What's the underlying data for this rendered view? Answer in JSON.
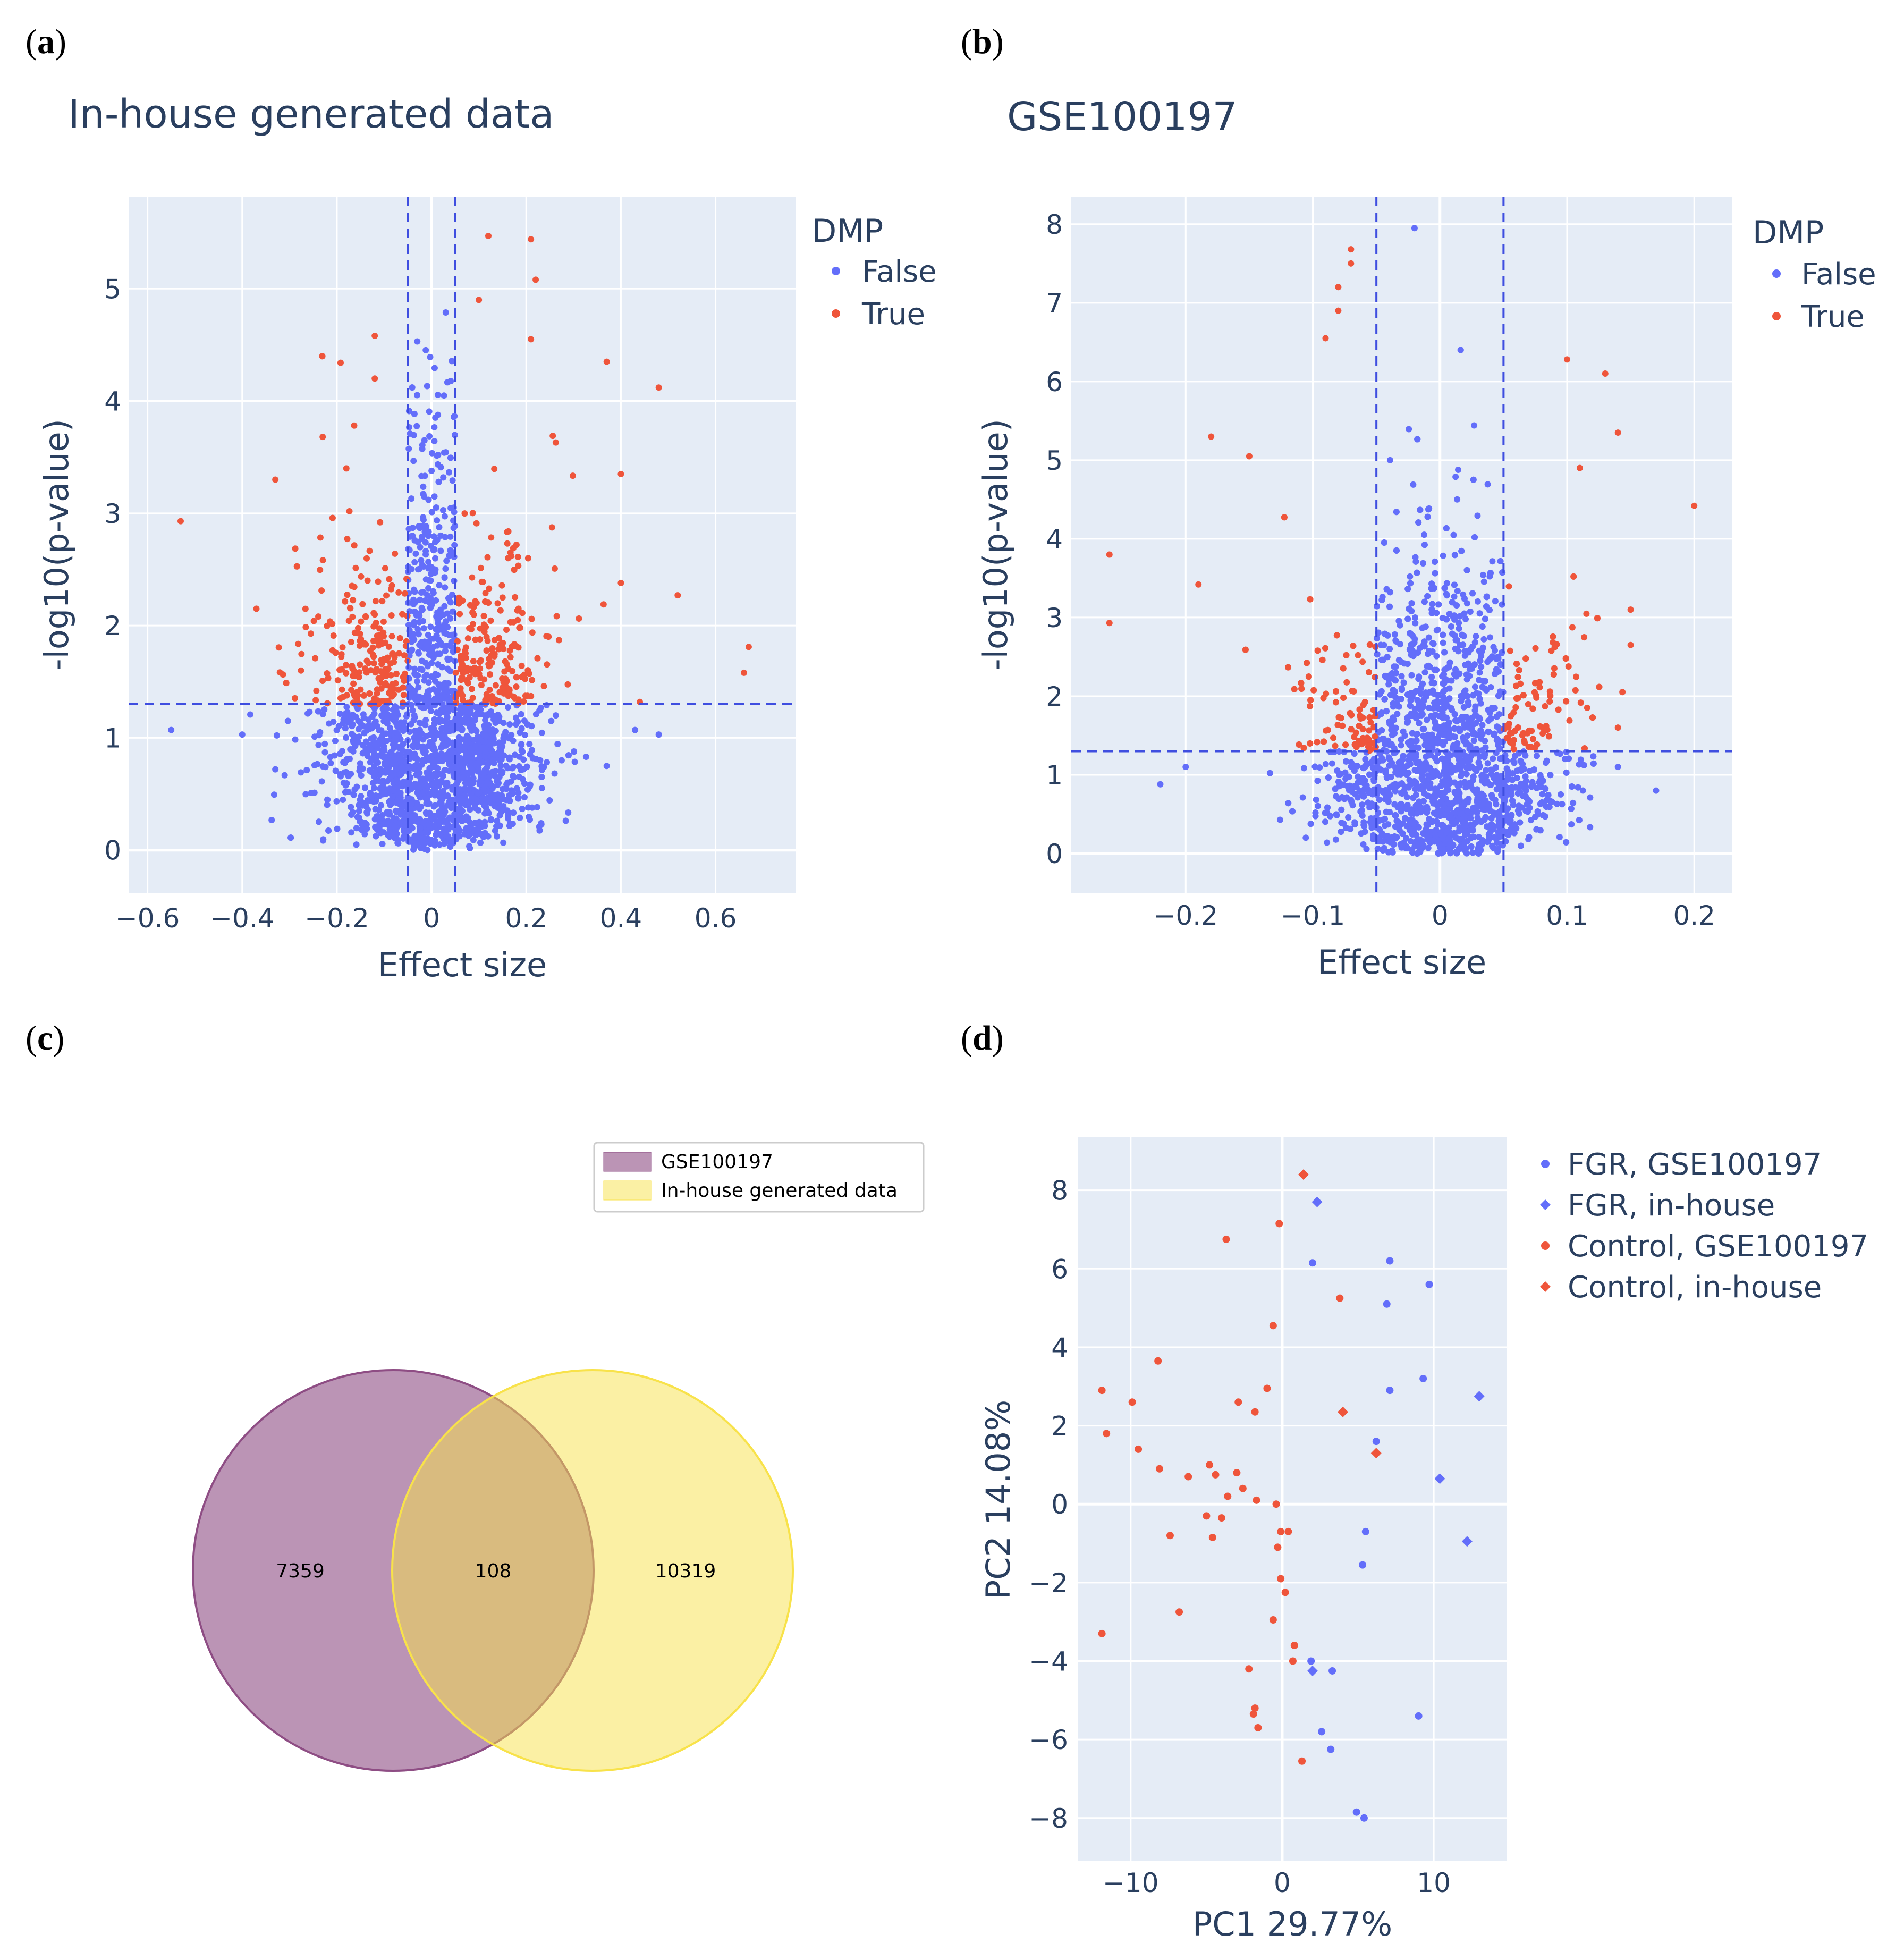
{
  "panels": {
    "a": {
      "label": "a"
    },
    "b": {
      "label": "b"
    },
    "c": {
      "label": "c"
    },
    "d": {
      "label": "d"
    }
  },
  "colors": {
    "false": "#636efa",
    "true": "#ef553b",
    "bg": "#e5ecf6",
    "venn_a": "#8e4d84",
    "venn_b": "#f8e24a"
  },
  "chart_data": [
    {
      "type": "scatter",
      "title": "In-house generated data",
      "xlabel": "Effect size",
      "ylabel": "-log10(p-value)",
      "xlim": [
        -0.64,
        0.77
      ],
      "ylim": [
        -0.38,
        5.82
      ],
      "xticks": [
        -0.6,
        -0.4,
        -0.2,
        0,
        0.2,
        0.4,
        0.6
      ],
      "xtick_labels": [
        "−0.6",
        "−0.4",
        "−0.2",
        "0",
        "0.2",
        "0.4",
        "0.6"
      ],
      "yticks": [
        0,
        1,
        2,
        3,
        4,
        5
      ],
      "ytick_labels": [
        "0",
        "1",
        "2",
        "3",
        "4",
        "5"
      ],
      "thresholds": {
        "x": [
          -0.05,
          0.05
        ],
        "y": 1.3
      },
      "legend_title": "DMP",
      "series": [
        {
          "name": "False",
          "color": "#636efa"
        },
        {
          "name": "True",
          "color": "#ef553b"
        }
      ],
      "spread": {
        "x_sd": 0.11,
        "max_y": 4.9
      },
      "highlight_points": [
        [
          -0.53,
          2.93
        ],
        [
          -0.37,
          2.15
        ],
        [
          -0.33,
          3.3
        ],
        [
          -0.23,
          3.68
        ],
        [
          -0.18,
          3.4
        ],
        [
          -0.12,
          4.58
        ],
        [
          -0.12,
          4.2
        ],
        [
          0.12,
          5.47
        ],
        [
          0.21,
          5.44
        ],
        [
          0.22,
          5.08
        ],
        [
          0.1,
          4.9
        ],
        [
          0.21,
          4.55
        ],
        [
          0.37,
          4.35
        ],
        [
          0.48,
          4.12
        ],
        [
          0.4,
          3.35
        ],
        [
          0.52,
          2.27
        ],
        [
          0.67,
          1.81
        ],
        [
          0.66,
          1.58
        ],
        [
          0.4,
          2.38
        ],
        [
          0.44,
          1.32
        ]
      ],
      "outlier_false_points": [
        [
          -0.55,
          1.07
        ],
        [
          -0.4,
          1.03
        ],
        [
          0.43,
          1.07
        ],
        [
          0.48,
          1.03
        ],
        [
          0.37,
          0.75
        ],
        [
          -0.33,
          0.72
        ]
      ]
    },
    {
      "type": "scatter",
      "title": "GSE100197",
      "xlabel": "Effect size",
      "ylabel": "-log10(p-value)",
      "xlim": [
        -0.29,
        0.23
      ],
      "ylim": [
        -0.5,
        8.35
      ],
      "xticks": [
        -0.2,
        -0.1,
        0,
        0.1,
        0.2
      ],
      "xtick_labels": [
        "−0.2",
        "−0.1",
        "0",
        "0.1",
        "0.2"
      ],
      "yticks": [
        0,
        1,
        2,
        3,
        4,
        5,
        6,
        7,
        8
      ],
      "ytick_labels": [
        "0",
        "1",
        "2",
        "3",
        "4",
        "5",
        "6",
        "7",
        "8"
      ],
      "thresholds": {
        "x": [
          -0.05,
          0.05
        ],
        "y": 1.3
      },
      "legend_title": "DMP",
      "series": [
        {
          "name": "False",
          "color": "#636efa"
        },
        {
          "name": "True",
          "color": "#ef553b"
        }
      ],
      "spread": {
        "x_sd": 0.045,
        "max_y": 6.8
      },
      "highlight_points": [
        [
          -0.26,
          3.8
        ],
        [
          -0.26,
          2.93
        ],
        [
          -0.19,
          3.42
        ],
        [
          -0.18,
          5.3
        ],
        [
          -0.15,
          5.05
        ],
        [
          -0.07,
          7.68
        ],
        [
          -0.07,
          7.5
        ],
        [
          -0.08,
          7.2
        ],
        [
          -0.08,
          6.9
        ],
        [
          -0.09,
          6.55
        ],
        [
          0.1,
          6.28
        ],
        [
          0.13,
          6.1
        ],
        [
          0.14,
          5.35
        ],
        [
          0.2,
          4.42
        ],
        [
          0.11,
          4.9
        ],
        [
          0.15,
          3.1
        ],
        [
          0.15,
          2.65
        ],
        [
          0.14,
          1.6
        ]
      ],
      "outlier_false_points": [
        [
          -0.02,
          7.95
        ],
        [
          -0.22,
          0.88
        ],
        [
          0.17,
          0.8
        ],
        [
          -0.2,
          1.1
        ],
        [
          0.14,
          1.1
        ]
      ]
    },
    {
      "type": "venn",
      "sets": [
        "GSE100197",
        "In-house generated data"
      ],
      "counts": {
        "only_a": "7359",
        "both": "108",
        "only_b": "10319"
      }
    },
    {
      "type": "scatter",
      "xlabel": "PC1 29.77%",
      "ylabel": "PC2 14.08%",
      "xlim": [
        -13.5,
        14.8
      ],
      "ylim": [
        -9.1,
        9.35
      ],
      "xticks": [
        -10,
        0,
        10
      ],
      "xtick_labels": [
        "−10",
        "0",
        "10"
      ],
      "yticks": [
        -8,
        -6,
        -4,
        -2,
        0,
        2,
        4,
        6,
        8
      ],
      "ytick_labels": [
        "−8",
        "−6",
        "−4",
        "−2",
        "0",
        "2",
        "4",
        "6",
        "8"
      ],
      "series": [
        {
          "name": "FGR, GSE100197",
          "color": "#636efa",
          "marker": "circle",
          "points": [
            [
              2.0,
              6.15
            ],
            [
              7.1,
              6.2
            ],
            [
              9.7,
              5.6
            ],
            [
              6.9,
              5.1
            ],
            [
              7.1,
              2.9
            ],
            [
              9.3,
              3.2
            ],
            [
              6.2,
              1.6
            ],
            [
              5.5,
              -0.7
            ],
            [
              5.3,
              -1.55
            ],
            [
              1.9,
              -4.0
            ],
            [
              3.3,
              -4.25
            ],
            [
              2.6,
              -5.8
            ],
            [
              3.2,
              -6.25
            ],
            [
              4.9,
              -7.85
            ],
            [
              5.4,
              -8.0
            ],
            [
              9.0,
              -5.4
            ]
          ]
        },
        {
          "name": "FGR, in-house",
          "color": "#636efa",
          "marker": "diamond",
          "points": [
            [
              2.3,
              7.7
            ],
            [
              13.0,
              2.75
            ],
            [
              10.4,
              0.65
            ],
            [
              12.2,
              -0.95
            ],
            [
              2.0,
              -4.25
            ]
          ]
        },
        {
          "name": "Control, GSE100197",
          "color": "#ef553b",
          "marker": "circle",
          "points": [
            [
              -0.2,
              7.15
            ],
            [
              -3.7,
              6.75
            ],
            [
              3.8,
              5.25
            ],
            [
              -0.6,
              4.55
            ],
            [
              -8.2,
              3.65
            ],
            [
              -11.9,
              2.9
            ],
            [
              -9.9,
              2.6
            ],
            [
              -1.0,
              2.95
            ],
            [
              -2.9,
              2.6
            ],
            [
              -1.8,
              2.35
            ],
            [
              -11.6,
              1.8
            ],
            [
              -9.5,
              1.4
            ],
            [
              -8.1,
              0.9
            ],
            [
              -4.8,
              1.0
            ],
            [
              -6.2,
              0.7
            ],
            [
              -4.4,
              0.75
            ],
            [
              -3.0,
              0.8
            ],
            [
              -2.6,
              0.4
            ],
            [
              -1.7,
              0.1
            ],
            [
              -3.6,
              0.2
            ],
            [
              -0.4,
              0.0
            ],
            [
              -5.0,
              -0.3
            ],
            [
              -4.0,
              -0.35
            ],
            [
              -7.4,
              -0.8
            ],
            [
              -4.6,
              -0.85
            ],
            [
              -0.1,
              -0.7
            ],
            [
              0.4,
              -0.7
            ],
            [
              -0.3,
              -1.1
            ],
            [
              -0.1,
              -1.9
            ],
            [
              0.2,
              -2.25
            ],
            [
              -6.8,
              -2.75
            ],
            [
              -0.6,
              -2.95
            ],
            [
              0.8,
              -3.6
            ],
            [
              0.7,
              -4.0
            ],
            [
              -2.2,
              -4.2
            ],
            [
              -1.8,
              -5.2
            ],
            [
              -1.9,
              -5.35
            ],
            [
              -1.6,
              -5.7
            ],
            [
              1.3,
              -6.55
            ],
            [
              -11.9,
              -3.3
            ]
          ]
        },
        {
          "name": "Control, in-house",
          "color": "#ef553b",
          "marker": "diamond",
          "points": [
            [
              1.4,
              8.4
            ],
            [
              4.0,
              2.35
            ],
            [
              6.2,
              1.3
            ]
          ]
        }
      ]
    }
  ]
}
